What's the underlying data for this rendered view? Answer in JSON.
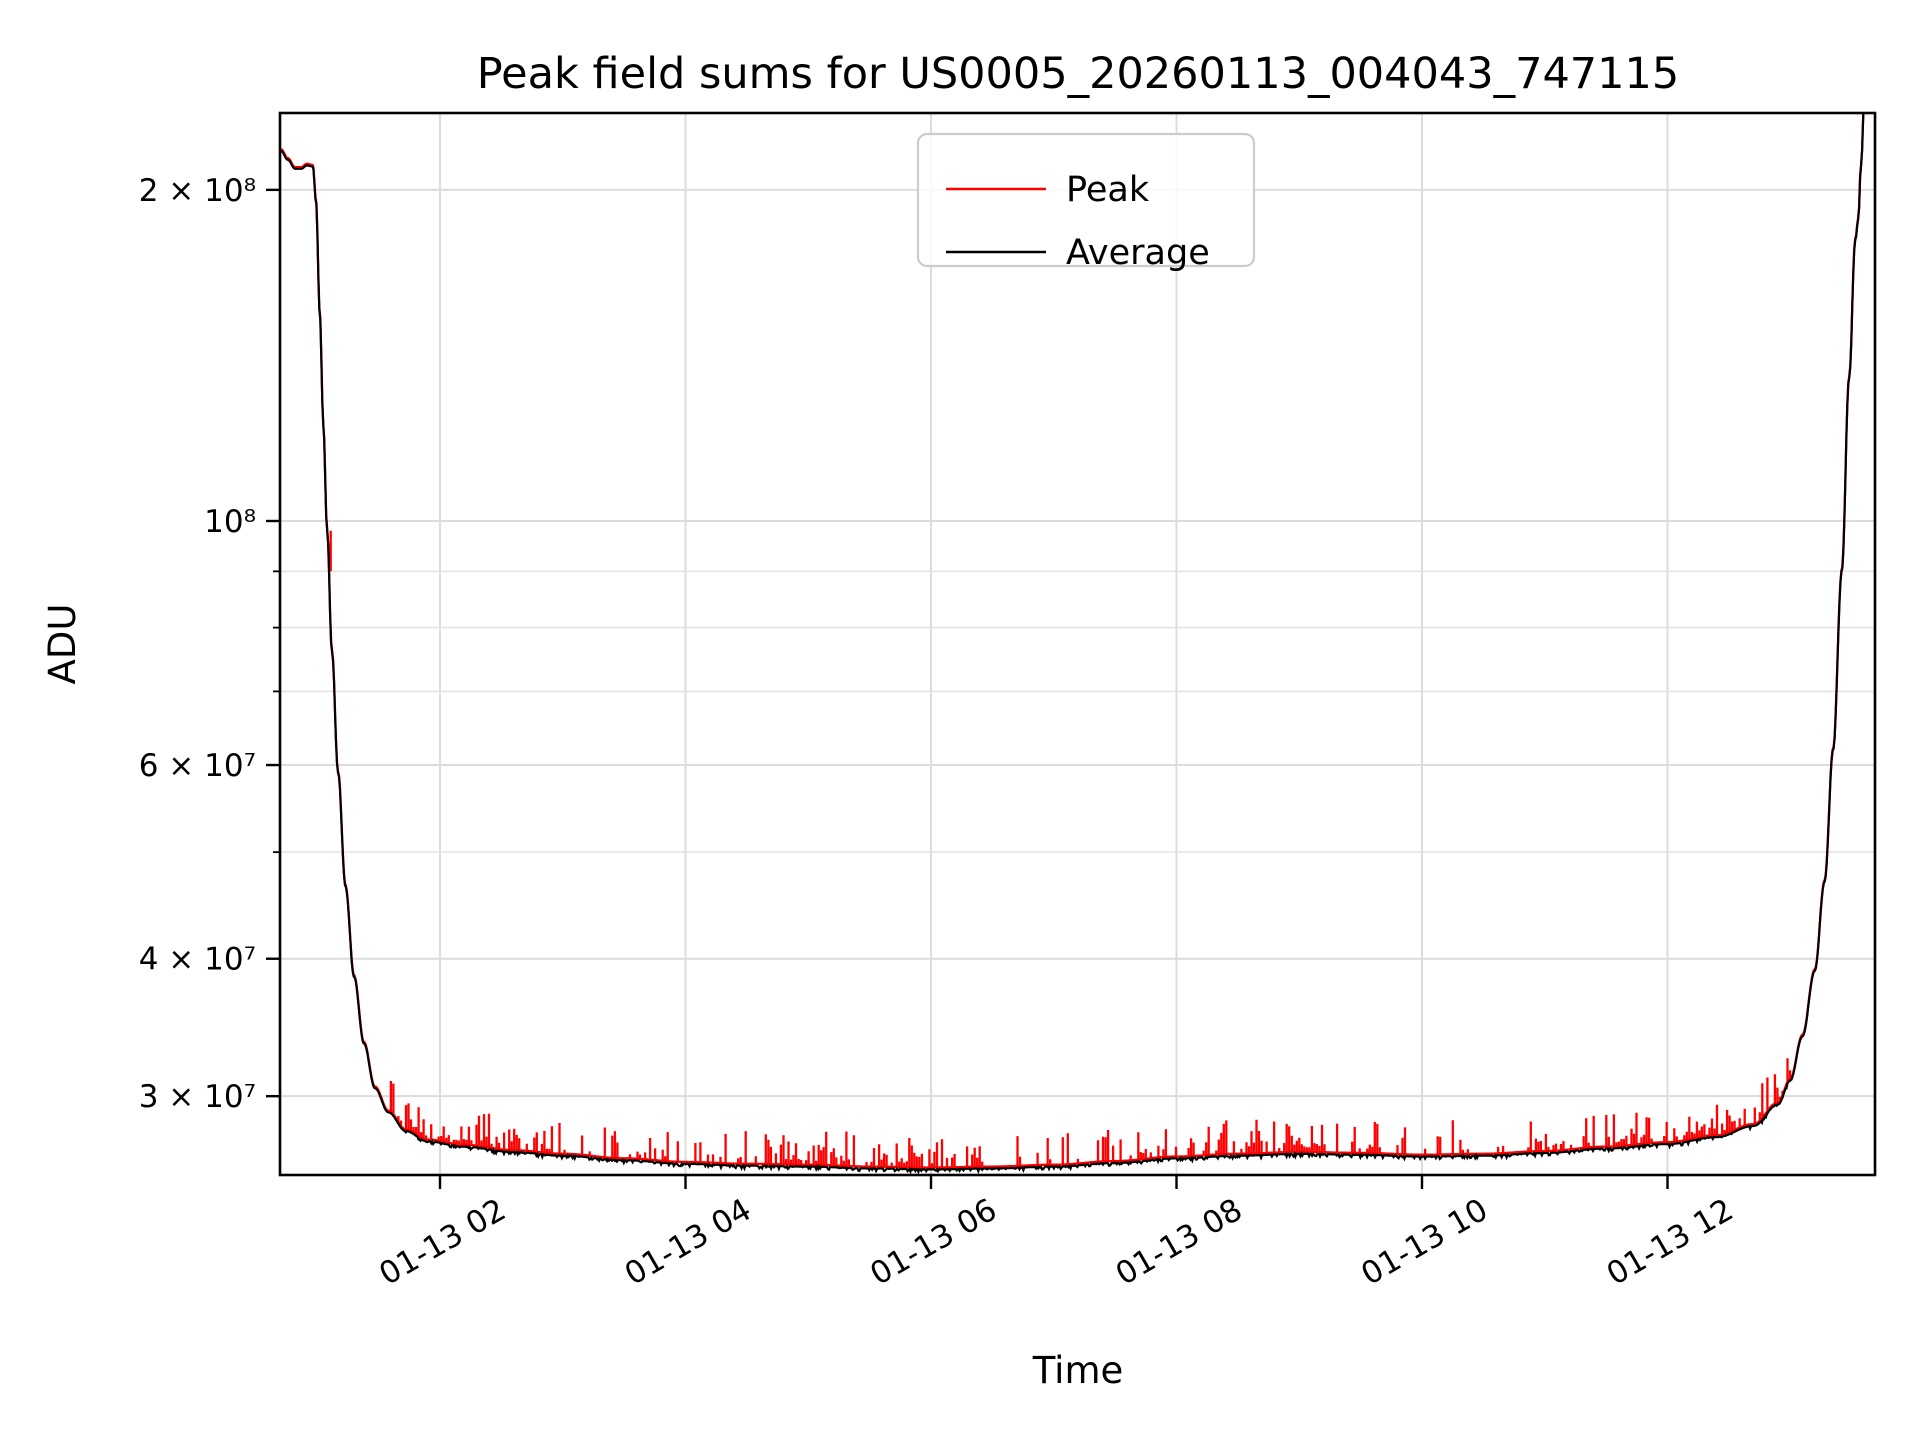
{
  "chart_data": {
    "type": "line",
    "title": "Peak field sums for US0005_20260113_004043_747115",
    "xlabel": "Time",
    "ylabel": "ADU",
    "legend_position": "upper center",
    "grid": true,
    "y_axis": {
      "scale": "log",
      "min": 25400000,
      "max": 235000000,
      "labeled_ticks": [
        {
          "label": "2 × 10⁸",
          "value": 200000000
        },
        {
          "label": "10⁸",
          "value": 100000000
        },
        {
          "label": "6 × 10⁷",
          "value": 60000000
        },
        {
          "label": "4 × 10⁷",
          "value": 40000000
        },
        {
          "label": "3 × 10⁷",
          "value": 30000000
        }
      ],
      "minor_tick_values": [
        90000000,
        80000000,
        70000000,
        50000000
      ]
    },
    "x_axis": {
      "unit": "hours on 2026-01-13",
      "start_hours": 0.705,
      "end_hours": 13.69,
      "ticks": [
        {
          "label": "01-13 02",
          "hours": 2
        },
        {
          "label": "01-13 04",
          "hours": 4
        },
        {
          "label": "01-13 06",
          "hours": 6
        },
        {
          "label": "01-13 08",
          "hours": 8
        },
        {
          "label": "01-13 10",
          "hours": 10
        },
        {
          "label": "01-13 12",
          "hours": 12
        }
      ]
    },
    "series": [
      {
        "name": "Peak",
        "color": "#ff0000"
      },
      {
        "name": "Average",
        "color": "#000000"
      }
    ],
    "average_points": [
      [
        0.705,
        217000000
      ],
      [
        0.76,
        213000000
      ],
      [
        0.82,
        209000000
      ],
      [
        0.87,
        209000000
      ],
      [
        0.915,
        210500000
      ],
      [
        0.965,
        210000000
      ],
      [
        0.99,
        195000000
      ],
      [
        1.02,
        155000000
      ],
      [
        1.05,
        122000000
      ],
      [
        1.08,
        98000000
      ],
      [
        1.12,
        76000000
      ],
      [
        1.17,
        59000000
      ],
      [
        1.23,
        46500000
      ],
      [
        1.3,
        38500000
      ],
      [
        1.38,
        33500000
      ],
      [
        1.47,
        30500000
      ],
      [
        1.58,
        29000000
      ],
      [
        1.72,
        27900000
      ],
      [
        1.9,
        27300000
      ],
      [
        2.2,
        27000000
      ],
      [
        2.6,
        26700000
      ],
      [
        3.0,
        26500000
      ],
      [
        3.5,
        26250000
      ],
      [
        4.0,
        26050000
      ],
      [
        4.5,
        25950000
      ],
      [
        5.0,
        25900000
      ],
      [
        5.5,
        25800000
      ],
      [
        6.0,
        25750000
      ],
      [
        6.5,
        25800000
      ],
      [
        7.0,
        25900000
      ],
      [
        7.5,
        26100000
      ],
      [
        8.0,
        26350000
      ],
      [
        8.5,
        26500000
      ],
      [
        9.0,
        26600000
      ],
      [
        9.5,
        26550000
      ],
      [
        10.0,
        26450000
      ],
      [
        10.5,
        26500000
      ],
      [
        11.0,
        26650000
      ],
      [
        11.5,
        26900000
      ],
      [
        12.0,
        27150000
      ],
      [
        12.4,
        27550000
      ],
      [
        12.7,
        28200000
      ],
      [
        12.9,
        29500000
      ],
      [
        13.0,
        31000000
      ],
      [
        13.1,
        34000000
      ],
      [
        13.2,
        39000000
      ],
      [
        13.28,
        47000000
      ],
      [
        13.35,
        62000000
      ],
      [
        13.42,
        90000000
      ],
      [
        13.48,
        135000000
      ],
      [
        13.53,
        180000000
      ],
      [
        13.555,
        188000000
      ],
      [
        13.575,
        210000000
      ],
      [
        13.61,
        250000000
      ],
      [
        13.69,
        310000000
      ]
    ],
    "peak_series": {
      "description": "Peak follows Average plus upward noise spikes along the flat bottom",
      "baseline_excess_frac": 0.0035,
      "spike_t_start": 1.6,
      "spike_t_end": 13.02,
      "spike_step_hours": 0.0205,
      "spike_probability": 0.55,
      "spike_min_excess_frac": 0.012,
      "spike_max_excess_frac": 0.08,
      "typical_spike_top": 28500000,
      "seed": 20260113,
      "descent_marker": {
        "t": 1.093,
        "from": 90000000,
        "to": 98000000
      }
    }
  },
  "legend": {
    "entries": [
      "Peak",
      "Average"
    ]
  }
}
